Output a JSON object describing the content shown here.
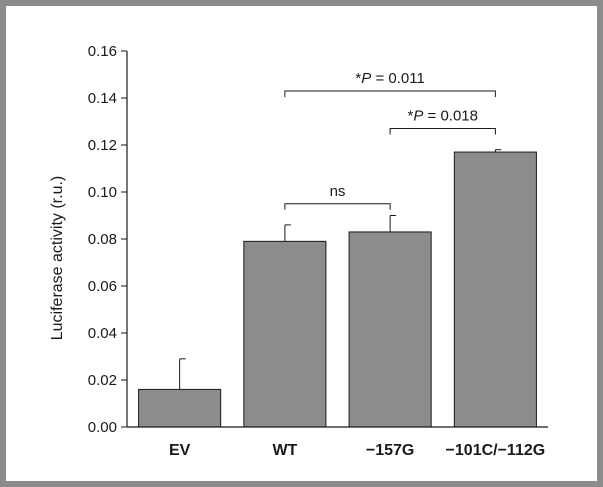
{
  "chart_data": {
    "type": "bar",
    "categories": [
      "EV",
      "WT",
      "−157G",
      "−101C/−112G"
    ],
    "values": [
      0.016,
      0.079,
      0.083,
      0.117
    ],
    "errors": [
      0.013,
      0.007,
      0.007,
      0.001
    ],
    "title": "",
    "xlabel": "",
    "ylabel": "Luciferase activity (r.u.)",
    "ylim": [
      0,
      0.16
    ],
    "yticks": [
      0.0,
      0.02,
      0.04,
      0.06,
      0.08,
      0.1,
      0.12,
      0.14,
      0.16
    ],
    "ytick_labels": [
      "0.00",
      "0.02",
      "0.04",
      "0.06",
      "0.08",
      "0.10",
      "0.12",
      "0.14",
      "0.16"
    ],
    "grid": false,
    "bar_color": "#8c8c8c",
    "annotations": [
      {
        "from": 1,
        "to": 2,
        "level": 0.095,
        "prefix": "",
        "italic": "",
        "suffix": "ns"
      },
      {
        "from": 2,
        "to": 3,
        "level": 0.127,
        "prefix": "*",
        "italic": "P",
        "suffix": " = 0.018"
      },
      {
        "from": 1,
        "to": 3,
        "level": 0.143,
        "prefix": "*",
        "italic": "P",
        "suffix": " = 0.011"
      }
    ]
  }
}
